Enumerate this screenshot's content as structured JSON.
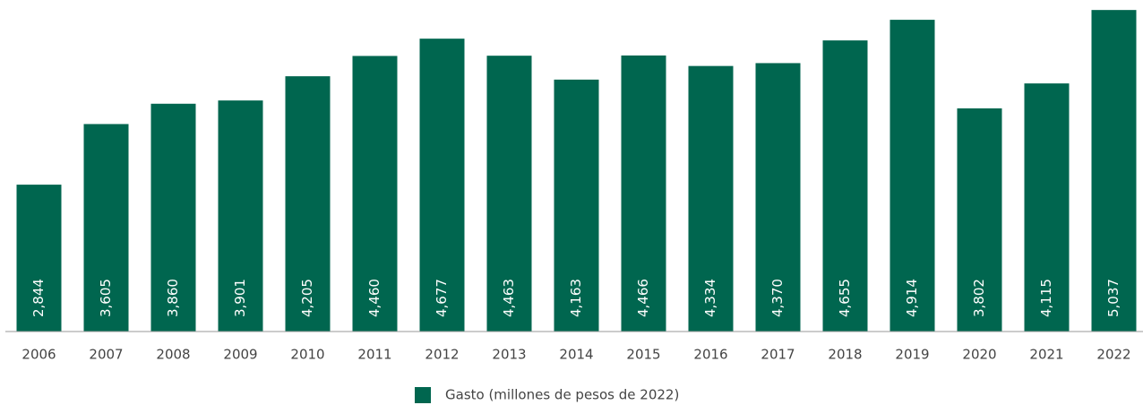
{
  "chart_data": {
    "type": "bar",
    "categories": [
      "2006",
      "2007",
      "2008",
      "2009",
      "2010",
      "2011",
      "2012",
      "2013",
      "2014",
      "2015",
      "2016",
      "2017",
      "2018",
      "2019",
      "2020",
      "2021",
      "2022"
    ],
    "series": [
      {
        "name": "Gasto (millones de pesos de 2022)",
        "color": "#00664f",
        "values": [
          2844,
          3605,
          3860,
          3901,
          4205,
          4460,
          4677,
          4463,
          4163,
          4466,
          4334,
          4370,
          4655,
          4914,
          3802,
          4115,
          5037
        ],
        "value_labels": [
          "2,844",
          "3,605",
          "3,860",
          "3,901",
          "4,205",
          "4,460",
          "4,677",
          "4,463",
          "4,163",
          "4,466",
          "4,334",
          "4,370",
          "4,655",
          "4,914",
          "3,802",
          "4,115",
          "5,037"
        ]
      }
    ],
    "ylim": [
      1000,
      5050
    ]
  }
}
